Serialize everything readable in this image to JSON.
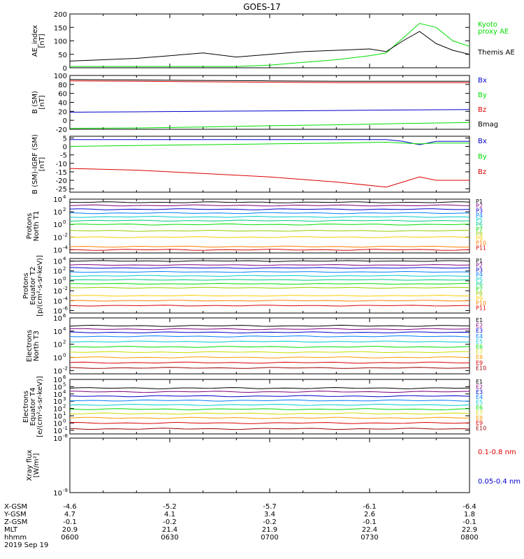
{
  "title": "GOES-17",
  "chart_data": [
    {
      "type": "line",
      "panel": "AE index",
      "ylabel": [
        "AE_index",
        "[nT]"
      ],
      "ylim": [
        0,
        200
      ],
      "yticks": [
        0,
        50,
        100,
        150,
        200
      ],
      "ytick_labels": [
        "0",
        "50",
        "100",
        "150",
        "200"
      ],
      "x": [
        "0600",
        "0610",
        "0620",
        "0630",
        "0640",
        "0650",
        "0700",
        "0710",
        "0720",
        "0730",
        "0735",
        "0740",
        "0745",
        "0750",
        "0755",
        "0800"
      ],
      "series": [
        {
          "name": "Kyoto proxy AE",
          "color": "#00dd00",
          "values": [
            5,
            5,
            5,
            5,
            5,
            5,
            10,
            20,
            30,
            45,
            55,
            110,
            165,
            150,
            100,
            80
          ]
        },
        {
          "name": "Themis AE",
          "color": "#000000",
          "values": [
            25,
            30,
            35,
            45,
            55,
            40,
            50,
            60,
            65,
            70,
            60,
            100,
            135,
            90,
            65,
            50
          ]
        }
      ],
      "legend": [
        {
          "text": "Kyoto",
          "color": "#00dd00"
        },
        {
          "text": "proxy AE",
          "color": "#00dd00"
        },
        {
          "text": "Themis AE",
          "color": "#000000"
        }
      ]
    },
    {
      "type": "line",
      "panel": "B (SM)",
      "ylabel": [
        "B (SM)",
        "[nT]"
      ],
      "ylim": [
        -20,
        100
      ],
      "yticks": [
        -20,
        0,
        20,
        40,
        60,
        80,
        100
      ],
      "ytick_labels": [
        "-20",
        "0",
        "20",
        "40",
        "60",
        "80",
        "100"
      ],
      "x": [
        "0600",
        "0620",
        "0640",
        "0700",
        "0720",
        "0740",
        "0800"
      ],
      "series": [
        {
          "name": "Bx",
          "color": "#0000cc",
          "values": [
            18,
            19,
            20,
            21,
            22,
            23,
            24
          ]
        },
        {
          "name": "By",
          "color": "#00dd00",
          "values": [
            -18,
            -17,
            -15,
            -12,
            -10,
            -7,
            -5
          ]
        },
        {
          "name": "Bz",
          "color": "#dd0000",
          "values": [
            88,
            87,
            86,
            85,
            84,
            84,
            84
          ]
        },
        {
          "name": "Bmag",
          "color": "#000000",
          "values": [
            91,
            90,
            89,
            88,
            87,
            87,
            87
          ]
        }
      ],
      "legend": [
        {
          "text": "Bx",
          "color": "#0000cc"
        },
        {
          "text": "By",
          "color": "#00dd00"
        },
        {
          "text": "Bz",
          "color": "#dd0000"
        },
        {
          "text": "Bmag",
          "color": "#000000"
        }
      ]
    },
    {
      "type": "line",
      "panel": "B (SM)-IGRF (SM)",
      "ylabel": [
        "B (SM)-IGRF (SM)",
        "[nT]"
      ],
      "ylim": [
        -27,
        6
      ],
      "yticks": [
        -25,
        -20,
        -15,
        -10,
        -5,
        0,
        5
      ],
      "ytick_labels": [
        "-25",
        "-20",
        "-15",
        "-10",
        "-5",
        "0",
        "5"
      ],
      "x": [
        "0600",
        "0620",
        "0640",
        "0700",
        "0720",
        "0735",
        "0740",
        "0745",
        "0750",
        "0800"
      ],
      "series": [
        {
          "name": "Bx",
          "color": "#0000cc",
          "values": [
            4,
            4,
            4,
            4,
            4,
            4,
            3,
            1,
            3,
            3
          ]
        },
        {
          "name": "By",
          "color": "#00dd00",
          "values": [
            0,
            0.5,
            1,
            1.5,
            2,
            2.5,
            2,
            1.5,
            2,
            2
          ]
        },
        {
          "name": "Bz",
          "color": "#dd0000",
          "values": [
            -13,
            -14,
            -16,
            -18,
            -21,
            -24,
            -21,
            -18,
            -20,
            -20
          ]
        }
      ],
      "legend": [
        {
          "text": "Bx",
          "color": "#0000cc"
        },
        {
          "text": "By",
          "color": "#00dd00"
        },
        {
          "text": "Bz",
          "color": "#dd0000"
        }
      ]
    },
    {
      "type": "line",
      "panel": "Protons North T1",
      "ylabel": [
        "Protons",
        "North T1"
      ],
      "log": true,
      "ylim_exp": [
        -4.5,
        4
      ],
      "ytick_exps": [
        -4,
        -2,
        0,
        2,
        4
      ],
      "ytick_labels": [
        "10",
        "10",
        "10",
        "10",
        "10"
      ],
      "ytick_sups": [
        "-4",
        "-2",
        "0",
        "2",
        "4"
      ],
      "series": [
        {
          "name": "P1",
          "color": "#000000",
          "level_exp": 3.5
        },
        {
          "name": "P2",
          "color": "#7f007f",
          "level_exp": 3.0
        },
        {
          "name": "P3",
          "color": "#0000cc",
          "level_exp": 2.4
        },
        {
          "name": "P4",
          "color": "#007fff",
          "level_exp": 1.8
        },
        {
          "name": "P5",
          "color": "#00cccc",
          "level_exp": 1.2
        },
        {
          "name": "P6",
          "color": "#00cc7f",
          "level_exp": 0.6
        },
        {
          "name": "P7",
          "color": "#00dd00",
          "level_exp": 0.0
        },
        {
          "name": "P8",
          "color": "#99cc00",
          "level_exp": -1.0
        },
        {
          "name": "P9",
          "color": "#ffcc00",
          "level_exp": -2.0
        },
        {
          "name": "P10",
          "color": "#ff7f00",
          "level_exp": -3.5
        },
        {
          "name": "P11",
          "color": "#dd0000",
          "level_exp": -4.0
        }
      ]
    },
    {
      "type": "line",
      "panel": "Protons Equator T2",
      "ylabel": [
        "Protons",
        "Equator T2",
        "[p/(cm²-s-sr-keV)]"
      ],
      "log": true,
      "ylim_exp": [
        -6.5,
        4.5
      ],
      "ytick_exps": [
        -6,
        -4,
        -2,
        0,
        2,
        4
      ],
      "ytick_labels": [
        "10",
        "10",
        "10",
        "10",
        "10",
        "10"
      ],
      "ytick_sups": [
        "-6",
        "-4",
        "-2",
        "0",
        "2",
        "4"
      ],
      "series": [
        {
          "name": "P1",
          "color": "#000000",
          "level_exp": 4.0
        },
        {
          "name": "P2",
          "color": "#7f007f",
          "level_exp": 3.2
        },
        {
          "name": "P3",
          "color": "#0000cc",
          "level_exp": 2.6
        },
        {
          "name": "P4",
          "color": "#007fff",
          "level_exp": 1.8
        },
        {
          "name": "P5",
          "color": "#00cccc",
          "level_exp": 1.0
        },
        {
          "name": "P6",
          "color": "#00cc7f",
          "level_exp": 0.2
        },
        {
          "name": "P7",
          "color": "#00dd00",
          "level_exp": -0.6
        },
        {
          "name": "P8",
          "color": "#99cc00",
          "level_exp": -1.4
        },
        {
          "name": "P9",
          "color": "#ffcc00",
          "level_exp": -3.0
        },
        {
          "name": "P10",
          "color": "#ff7f00",
          "level_exp": -4.0
        },
        {
          "name": "P11",
          "color": "#dd0000",
          "level_exp": -5.0
        }
      ]
    },
    {
      "type": "line",
      "panel": "Electrons North T3",
      "ylabel": [
        "Electrons",
        "North T3"
      ],
      "log": true,
      "ylim_exp": [
        -2.5,
        6
      ],
      "ytick_exps": [
        -2,
        0,
        2,
        4,
        6
      ],
      "ytick_labels": [
        "10",
        "10",
        "10",
        "10",
        "10"
      ],
      "ytick_sups": [
        "-2",
        "0",
        "2",
        "4",
        "6"
      ],
      "series": [
        {
          "name": "E1",
          "color": "#000000",
          "level_exp": 4.8
        },
        {
          "name": "E2",
          "color": "#7f007f",
          "level_exp": 4.3
        },
        {
          "name": "E3",
          "color": "#0000cc",
          "level_exp": 3.8
        },
        {
          "name": "E4",
          "color": "#007fff",
          "level_exp": 3.2
        },
        {
          "name": "E5",
          "color": "#00cccc",
          "level_exp": 2.4
        },
        {
          "name": "E6",
          "color": "#00dd00",
          "level_exp": 1.6
        },
        {
          "name": "E7",
          "color": "#ccdd00",
          "level_exp": 0.8
        },
        {
          "name": "E8",
          "color": "#ff9900",
          "level_exp": 0.0
        },
        {
          "name": "E9",
          "color": "#dd0000",
          "level_exp": -0.8
        },
        {
          "name": "E10",
          "color": "#990000",
          "level_exp": -1.6
        }
      ]
    },
    {
      "type": "line",
      "panel": "Electrons Equator T4",
      "ylabel": [
        "Electrons",
        "Equator T4",
        "[e/(cm²-s-sr-keV)]"
      ],
      "log": true,
      "ylim_exp": [
        -1.5,
        6
      ],
      "ytick_exps": [
        -1,
        0,
        1,
        2,
        3,
        4,
        5,
        6
      ],
      "ytick_labels": [
        "10",
        "10",
        "10",
        "10",
        "10",
        "10",
        "10",
        "10"
      ],
      "ytick_sups": [
        "-1",
        "0",
        "1",
        "2",
        "3",
        "4",
        "5",
        "6"
      ],
      "series": [
        {
          "name": "E1",
          "color": "#000000",
          "level_exp": 4.8
        },
        {
          "name": "E2",
          "color": "#7f007f",
          "level_exp": 4.3
        },
        {
          "name": "E3",
          "color": "#0000cc",
          "level_exp": 3.7
        },
        {
          "name": "E4",
          "color": "#007fff",
          "level_exp": 3.1
        },
        {
          "name": "E5",
          "color": "#00cccc",
          "level_exp": 2.5
        },
        {
          "name": "E6",
          "color": "#00dd00",
          "level_exp": 1.9
        },
        {
          "name": "E7",
          "color": "#ccdd00",
          "level_exp": 1.3
        },
        {
          "name": "E8",
          "color": "#ff9900",
          "level_exp": 0.7
        },
        {
          "name": "E9",
          "color": "#dd0000",
          "level_exp": 0.0
        },
        {
          "name": "E10",
          "color": "#990000",
          "level_exp": -0.8
        }
      ]
    },
    {
      "type": "line",
      "panel": "Xray flux",
      "ylabel": [
        "Xray flux",
        "[W/m²]"
      ],
      "log": true,
      "ylim_exp": [
        -9,
        -8
      ],
      "ytick_exps": [
        -9,
        -8
      ],
      "ytick_labels": [
        "10",
        "10"
      ],
      "ytick_sups": [
        "-9",
        "-8"
      ],
      "series": [
        {
          "name": "0.1-0.8 nm",
          "color": "#dd0000",
          "values": []
        },
        {
          "name": "0.05-0.4 nm",
          "color": "#0000cc",
          "values": []
        }
      ],
      "legend": [
        {
          "text": "0.1-0.8 nm",
          "color": "#dd0000"
        },
        {
          "text": "0.05-0.4 nm",
          "color": "#0000cc"
        }
      ]
    }
  ],
  "xaxis": {
    "rows": [
      {
        "label": "X-GSM",
        "values": [
          "-4.6",
          "-5.2",
          "-5.7",
          "-6.1",
          "-6.4"
        ]
      },
      {
        "label": "Y-GSM",
        "values": [
          "4.7",
          "4.1",
          "3.4",
          "2.6",
          "1.8"
        ]
      },
      {
        "label": "Z-GSM",
        "values": [
          "-0.1",
          "-0.2",
          "-0.2",
          "-0.1",
          "-0.1"
        ]
      },
      {
        "label": "MLT",
        "values": [
          "20.9",
          "21.4",
          "21.9",
          "22.4",
          "22.9"
        ]
      },
      {
        "label": "hhmm",
        "values": [
          "0600",
          "0630",
          "0700",
          "0730",
          "0800"
        ]
      }
    ],
    "date": "2019 Sep 19"
  }
}
